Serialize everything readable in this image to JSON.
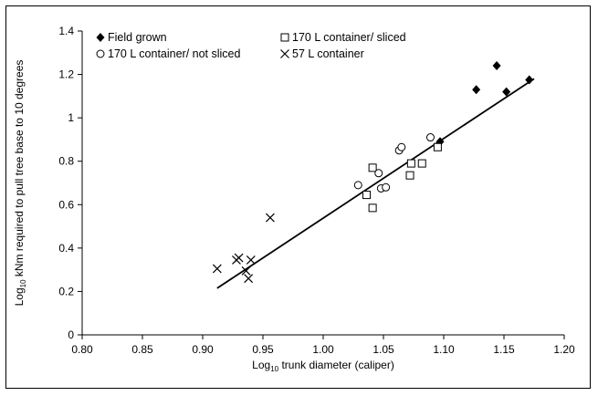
{
  "chart_data": {
    "type": "scatter",
    "xlabel_prefix": "Log",
    "xlabel_sub": "10",
    "xlabel_rest": " trunk diameter (caliper)",
    "ylabel_prefix": "Log",
    "ylabel_sub": "10",
    "ylabel_rest": " kNm required to pull tree base to 10 degrees",
    "xlim": [
      0.8,
      1.2
    ],
    "ylim": [
      0,
      1.4
    ],
    "xticks": [
      "0.80",
      "0.85",
      "0.90",
      "0.95",
      "1.00",
      "1.05",
      "1.10",
      "1.15",
      "1.20"
    ],
    "yticks": [
      "0",
      "0.2",
      "0.4",
      "0.6",
      "0.8",
      "1",
      "1.2",
      "1.4"
    ],
    "grid": false,
    "legend_position": "top",
    "series": [
      {
        "name": "Field grown",
        "marker": "filled-diamond",
        "points": [
          [
            1.097,
            0.89
          ],
          [
            1.127,
            1.13
          ],
          [
            1.144,
            1.24
          ],
          [
            1.152,
            1.12
          ],
          [
            1.171,
            1.175
          ]
        ]
      },
      {
        "name": "170 L container/ sliced",
        "marker": "open-square",
        "points": [
          [
            1.036,
            0.645
          ],
          [
            1.041,
            0.585
          ],
          [
            1.041,
            0.77
          ],
          [
            1.072,
            0.735
          ],
          [
            1.073,
            0.79
          ],
          [
            1.082,
            0.79
          ],
          [
            1.095,
            0.865
          ]
        ]
      },
      {
        "name": "170 L container/ not sliced",
        "marker": "open-circle",
        "points": [
          [
            1.029,
            0.69
          ],
          [
            1.046,
            0.745
          ],
          [
            1.048,
            0.675
          ],
          [
            1.052,
            0.68
          ],
          [
            1.063,
            0.85
          ],
          [
            1.065,
            0.865
          ],
          [
            1.089,
            0.91
          ]
        ]
      },
      {
        "name": "57 L container",
        "marker": "x",
        "points": [
          [
            0.912,
            0.305
          ],
          [
            0.928,
            0.345
          ],
          [
            0.93,
            0.355
          ],
          [
            0.936,
            0.295
          ],
          [
            0.938,
            0.26
          ],
          [
            0.94,
            0.345
          ],
          [
            0.956,
            0.54
          ]
        ]
      }
    ],
    "trendline": {
      "x": [
        0.912,
        1.175
      ],
      "y": [
        0.215,
        1.18
      ]
    }
  }
}
